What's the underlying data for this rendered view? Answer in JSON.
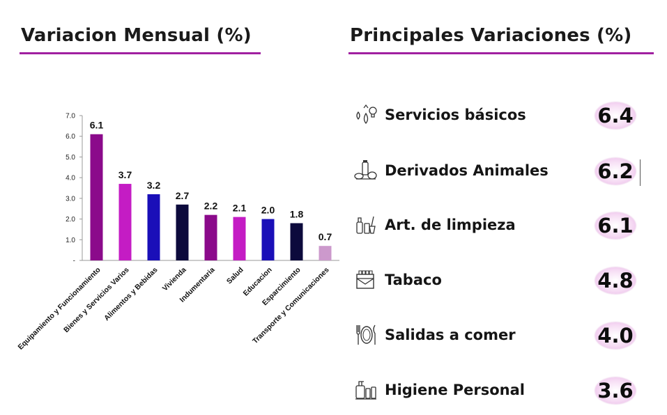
{
  "left_heading": "Variacion Mensual (%)",
  "right_heading": "Principales Variaciones (%)",
  "chart_data": {
    "type": "bar",
    "categories": [
      "Equipamiento y Funcionamiento",
      "Bienes y Servicios Varios",
      "Alimentos y Bebidas",
      "Vivienda",
      "Indumentaria",
      "Salud",
      "Educacion",
      "Esparcimiento",
      "Transporte y Comunicaciones"
    ],
    "values": [
      6.1,
      3.7,
      3.2,
      2.7,
      2.2,
      2.1,
      2.0,
      1.8,
      0.7
    ],
    "data_labels": [
      "6.1",
      "3.7",
      "3.2",
      "2.7",
      "2.2",
      "2.1",
      "2.0",
      "1.8",
      "0.7"
    ],
    "colors": [
      "#8b0a8b",
      "#c41cc4",
      "#1a0fb8",
      "#0c0a3c",
      "#8b0a8b",
      "#c41cc4",
      "#1a0fb8",
      "#0c0a3c",
      "#cc99cc"
    ],
    "ylim": [
      0,
      7
    ],
    "yticks": [
      "-",
      "1.0",
      "2.0",
      "3.0",
      "4.0",
      "5.0",
      "6.0",
      "7.0"
    ],
    "title": "",
    "xlabel": "",
    "ylabel": "",
    "grid": false
  },
  "variations": [
    {
      "label": "Servicios básicos",
      "value": "6.4",
      "icon": "utilities-icon"
    },
    {
      "label": "Derivados Animales",
      "value": "6.2",
      "icon": "dairy-products-icon"
    },
    {
      "label": "Art. de limpieza",
      "value": "6.1",
      "icon": "cleaning-supplies-icon"
    },
    {
      "label": "Tabaco",
      "value": "4.8",
      "icon": "cigarette-pack-icon"
    },
    {
      "label": "Salidas a comer",
      "value": "4.0",
      "icon": "plate-cutlery-icon"
    },
    {
      "label": "Higiene Personal",
      "value": "3.6",
      "icon": "toiletries-icon"
    }
  ],
  "accent_color": "#a020a0"
}
